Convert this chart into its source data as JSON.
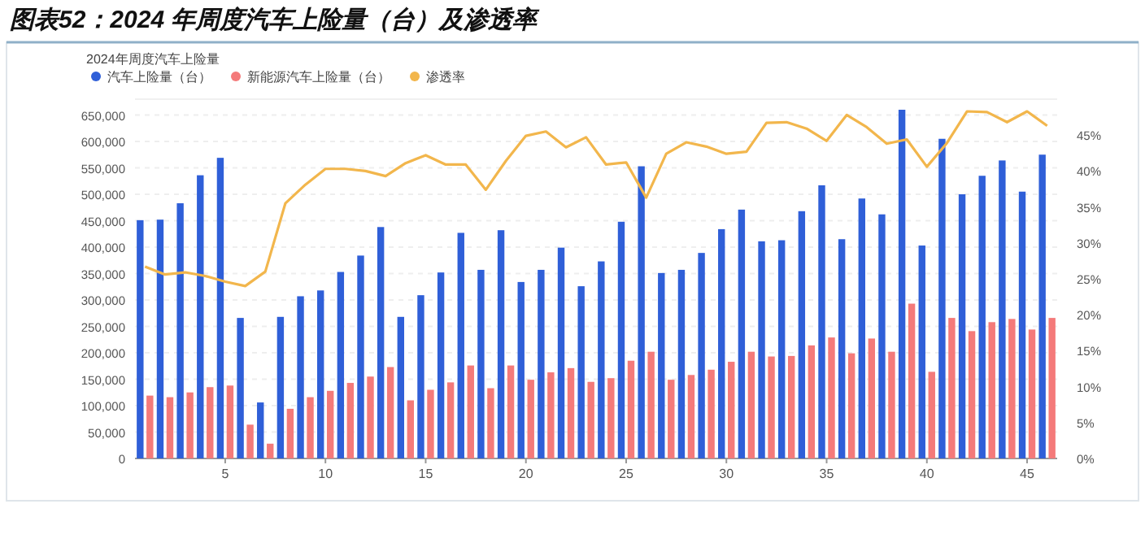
{
  "chart_data": {
    "type": "bar",
    "title": "图表52：2024 年周度汽车上险量（台）及渗透率",
    "subtitle": "2024年周度汽车上险量",
    "categories": [
      null,
      null,
      null,
      null,
      "5",
      null,
      null,
      null,
      null,
      "10",
      null,
      null,
      null,
      null,
      "15",
      null,
      null,
      null,
      null,
      "20",
      null,
      null,
      null,
      null,
      "25",
      null,
      null,
      null,
      null,
      "30",
      null,
      null,
      null,
      null,
      "35",
      null,
      null,
      null,
      null,
      "40",
      null,
      null,
      null,
      null,
      "45",
      null
    ],
    "series": [
      {
        "name": "汽车上险量（台）",
        "color": "#2f5fd8",
        "values": [
          451000,
          452000,
          483000,
          536000,
          569000,
          266000,
          106000,
          268000,
          307000,
          318000,
          353000,
          384000,
          438000,
          268000,
          309000,
          352000,
          427000,
          357000,
          432000,
          334000,
          357000,
          399000,
          326000,
          373000,
          448000,
          553000,
          351000,
          357000,
          389000,
          434000,
          471000,
          411000,
          413000,
          468000,
          517000,
          415000,
          492000,
          462000,
          660000,
          403000,
          605000,
          500000,
          535000,
          564000,
          505000,
          575000
        ]
      },
      {
        "name": "新能源汽车上险量（台）",
        "color": "#f47a7a",
        "values": [
          119000,
          116000,
          125000,
          135000,
          138000,
          64000,
          28000,
          94000,
          116000,
          128000,
          143000,
          155000,
          173000,
          110000,
          130000,
          144000,
          176000,
          133000,
          176000,
          149000,
          163000,
          171000,
          145000,
          152000,
          185000,
          202000,
          149000,
          158000,
          168000,
          183000,
          202000,
          193000,
          194000,
          214000,
          229000,
          199000,
          227000,
          202000,
          293000,
          164000,
          266000,
          241000,
          258000,
          264000,
          244000,
          266000
        ]
      },
      {
        "name": "渗透率",
        "type": "line",
        "axis": "y2",
        "color": "#f2b64c",
        "values": [
          26.7,
          25.6,
          25.9,
          25.4,
          24.6,
          24.0,
          26.0,
          35.5,
          38.1,
          40.3,
          40.3,
          40.0,
          39.3,
          41.1,
          42.2,
          40.9,
          40.9,
          37.4,
          41.4,
          44.9,
          45.5,
          43.3,
          44.7,
          40.9,
          41.2,
          36.3,
          42.4,
          44.0,
          43.4,
          42.4,
          42.7,
          46.7,
          46.8,
          45.9,
          44.2,
          47.8,
          46.1,
          43.8,
          44.4,
          40.6,
          43.9,
          48.3,
          48.2,
          46.8,
          48.3,
          46.3
        ]
      }
    ],
    "ylim": [
      0,
      680000
    ],
    "yticks": [
      {
        "value": 0,
        "label": "0"
      },
      {
        "value": 50000,
        "label": "50,000"
      },
      {
        "value": 100000,
        "label": "100,000"
      },
      {
        "value": 150000,
        "label": "150,000"
      },
      {
        "value": 200000,
        "label": "200,000"
      },
      {
        "value": 250000,
        "label": "250,000"
      },
      {
        "value": 300000,
        "label": "300,000"
      },
      {
        "value": 350000,
        "label": "350,000"
      },
      {
        "value": 400000,
        "label": "400,000"
      },
      {
        "value": 450000,
        "label": "450,000"
      },
      {
        "value": 500000,
        "label": "500,000"
      },
      {
        "value": 550000,
        "label": "550,000"
      },
      {
        "value": 600000,
        "label": "600,000"
      },
      {
        "value": 650000,
        "label": "650,000"
      }
    ],
    "y2lim": [
      0,
      50
    ],
    "y2ticks": [
      {
        "value": 0,
        "label": "0%"
      },
      {
        "value": 5,
        "label": "5%"
      },
      {
        "value": 10,
        "label": "10%"
      },
      {
        "value": 15,
        "label": "15%"
      },
      {
        "value": 20,
        "label": "20%"
      },
      {
        "value": 25,
        "label": "25%"
      },
      {
        "value": 30,
        "label": "30%"
      },
      {
        "value": 35,
        "label": "35%"
      },
      {
        "value": 40,
        "label": "40%"
      },
      {
        "value": 45,
        "label": "45%"
      }
    ],
    "grid": "y",
    "legend": "top left",
    "marker": "none"
  }
}
